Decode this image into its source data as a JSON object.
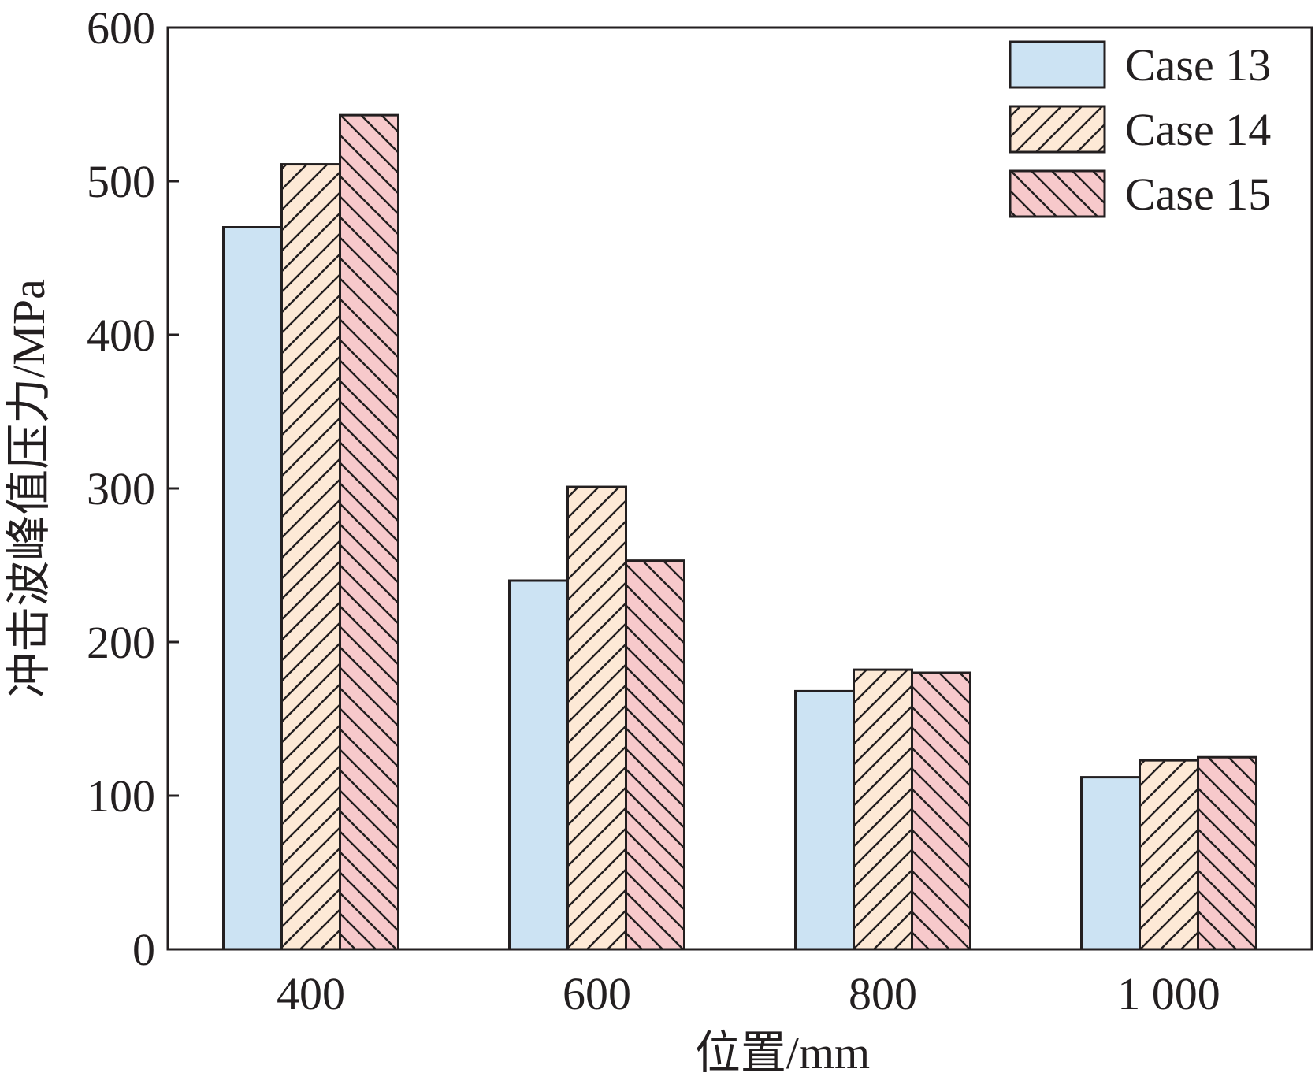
{
  "chart_data": {
    "type": "bar",
    "xlabel": "位置/mm",
    "ylabel": "冲击波峰值压力/MPa",
    "categories": [
      "400",
      "600",
      "800",
      "1 000"
    ],
    "series": [
      {
        "name": "Case 13",
        "values": [
          470,
          240,
          168,
          112
        ],
        "color": "#cce3f3",
        "pattern": "none"
      },
      {
        "name": "Case 14",
        "values": [
          511,
          301,
          182,
          123
        ],
        "color": "#fde9d6",
        "pattern": "forward-hatch"
      },
      {
        "name": "Case 15",
        "values": [
          543,
          253,
          180,
          125
        ],
        "color": "#f7c9cb",
        "pattern": "back-hatch"
      }
    ],
    "ylim": [
      0,
      600
    ],
    "yticks": [
      "0",
      "100",
      "200",
      "300",
      "400",
      "500",
      "600"
    ],
    "legend_position": "top-right",
    "grid": false
  }
}
